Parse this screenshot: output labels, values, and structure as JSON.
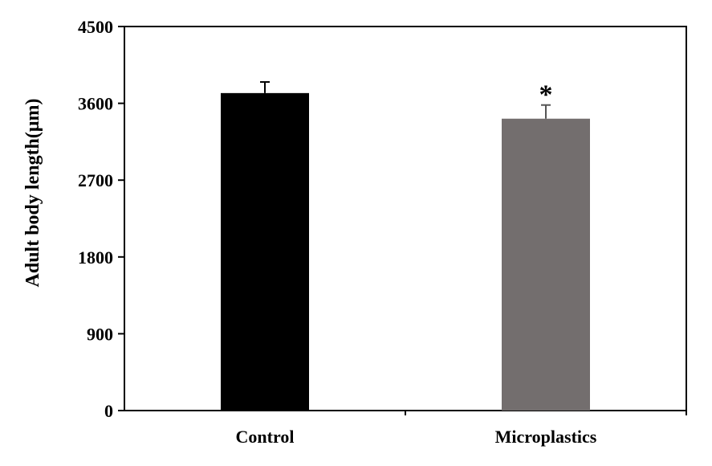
{
  "chart_data": {
    "type": "bar",
    "title": "",
    "xlabel": "",
    "ylabel": "Adult body length(μm)",
    "ylim": [
      0,
      4500
    ],
    "yticks": [
      0,
      900,
      1800,
      2700,
      3600,
      4500
    ],
    "categories": [
      "Control",
      "Microplastics"
    ],
    "values": [
      3720,
      3420
    ],
    "errors": [
      130,
      160
    ],
    "colors": [
      "#000000",
      "#736e6e"
    ],
    "annotations": [
      {
        "category": "Microplastics",
        "text": "*"
      }
    ],
    "grid": false,
    "legend": "none"
  }
}
